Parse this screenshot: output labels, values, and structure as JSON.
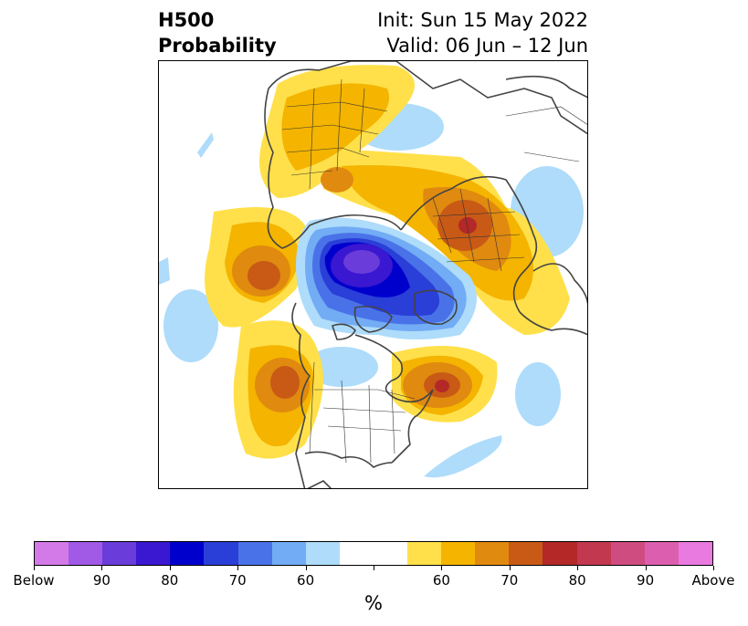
{
  "title": {
    "left_line1": "H500",
    "left_line2": "Probability",
    "right_line1": "Init: Sun 15 May 2022",
    "right_line2": "Valid: 06 Jun – 12 Jun"
  },
  "colorbar": {
    "colors": [
      "#d47ae8",
      "#a05ae6",
      "#6a3cd9",
      "#3a17d0",
      "#0000cc",
      "#2a3ed8",
      "#4a72e8",
      "#72acf4",
      "#aedcfa",
      "#ffffff",
      "#ffffff",
      "#ffe04a",
      "#f4b400",
      "#e08a10",
      "#c85a16",
      "#b42828",
      "#c2384e",
      "#cf4c80",
      "#dc5eae",
      "#e87ae0"
    ],
    "tick_labels": [
      "Below",
      "90",
      "80",
      "70",
      "60",
      "",
      "60",
      "70",
      "80",
      "90",
      "Above"
    ],
    "unit_label": "%"
  }
}
